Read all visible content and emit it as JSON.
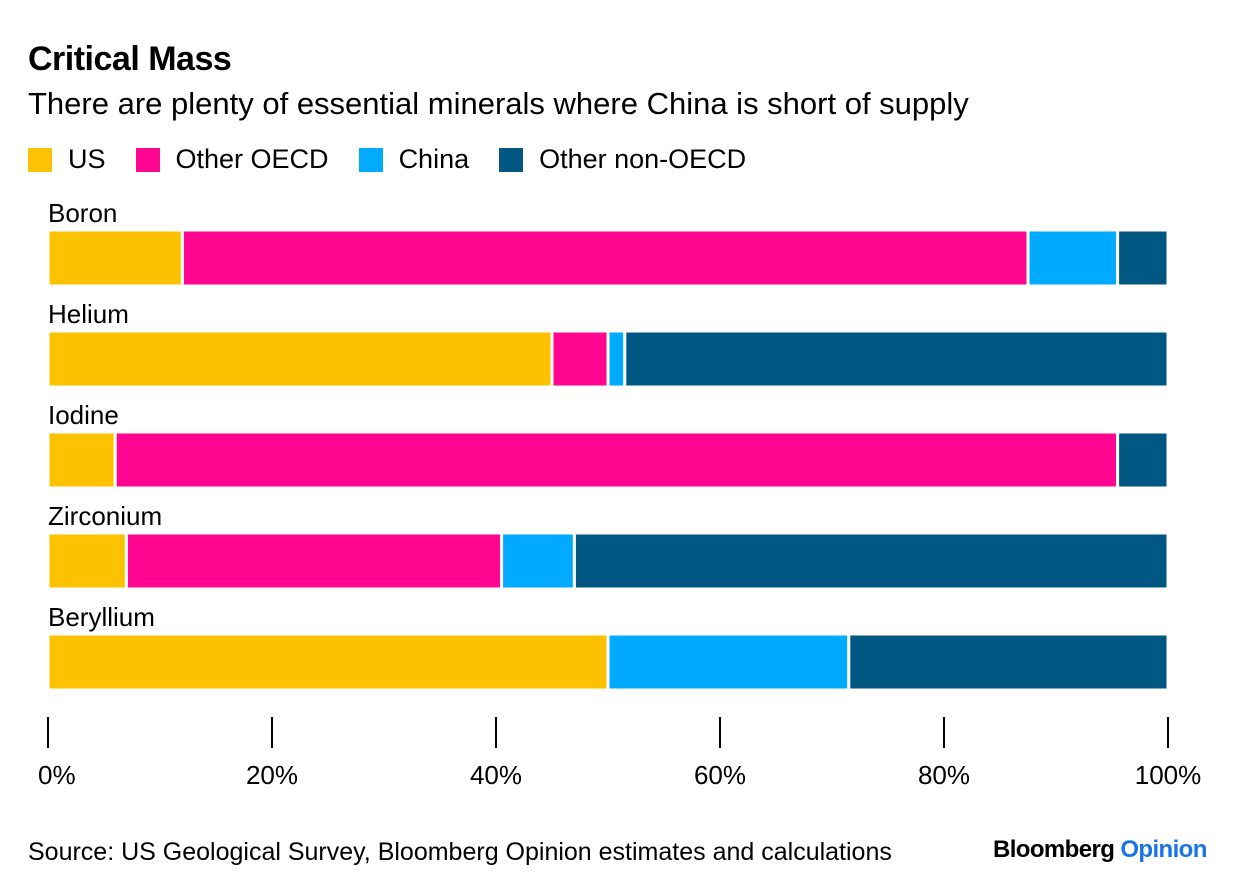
{
  "chart_data": {
    "type": "bar",
    "orientation": "horizontal",
    "stacked": true,
    "title": "Critical Mass",
    "subtitle": "There are plenty of essential minerals where China is short of supply",
    "categories": [
      "Boron",
      "Helium",
      "Iodine",
      "Zirconium",
      "Beryllium"
    ],
    "series": [
      {
        "name": "US",
        "color": "#fcc200",
        "values": [
          12,
          45,
          6,
          7,
          50
        ]
      },
      {
        "name": "Other OECD",
        "color": "#ff0590",
        "values": [
          75.5,
          5,
          89.5,
          33.5,
          0
        ]
      },
      {
        "name": "China",
        "color": "#00abff",
        "values": [
          8,
          1.5,
          0,
          6.5,
          21.5
        ]
      },
      {
        "name": "Other non-OECD",
        "color": "#005782",
        "values": [
          4.5,
          48.5,
          4.5,
          53,
          28.5
        ]
      }
    ],
    "xlim": [
      0,
      100
    ],
    "xticks": [
      "0%",
      "20%",
      "40%",
      "60%",
      "80%",
      "100%"
    ],
    "source": "Source: US Geological Survey, Bloomberg Opinion estimates and calculations"
  },
  "branding": {
    "primary": "Bloomberg",
    "secondary": "Opinion"
  }
}
